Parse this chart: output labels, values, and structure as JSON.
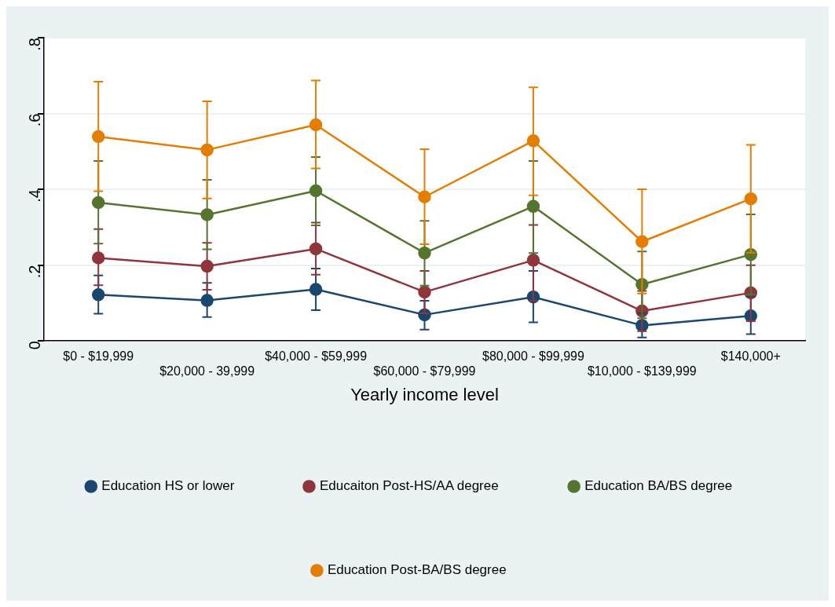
{
  "chart_data": {
    "type": "line",
    "xlabel": "Yearly income level",
    "categories": [
      "$0 - $19,999",
      "$20,000 - 39,999",
      "$40,000 - $59,999",
      "$60,000 - $79,999",
      "$80,000 - $99,999",
      "$10,000 - $139,999",
      "$140,000+"
    ],
    "ylim": [
      0,
      0.8
    ],
    "yticks": [
      {
        "value": 0,
        "label": "0"
      },
      {
        "value": 0.2,
        "label": ".2"
      },
      {
        "value": 0.4,
        "label": ".4"
      },
      {
        "value": 0.6,
        "label": ".6"
      },
      {
        "value": 0.8,
        "label": ".8"
      }
    ],
    "grid": "y",
    "legend": "bottom",
    "marker": "circle",
    "line_style": "solid",
    "series": [
      {
        "name": "Education HS or lower",
        "color": "#1a476f",
        "values": [
          0.122,
          0.107,
          0.136,
          0.069,
          0.116,
          0.041,
          0.066
        ],
        "errors": [
          [
            0.072,
            0.173
          ],
          [
            0.063,
            0.153
          ],
          [
            0.081,
            0.191
          ],
          [
            0.03,
            0.106
          ],
          [
            0.049,
            0.185
          ],
          [
            0.009,
            0.073
          ],
          [
            0.018,
            0.117
          ]
        ]
      },
      {
        "name": "Educaiton Post-HS/AA degree",
        "color": "#90353b",
        "values": [
          0.219,
          0.197,
          0.243,
          0.129,
          0.213,
          0.079,
          0.127
        ],
        "errors": [
          [
            0.147,
            0.295
          ],
          [
            0.135,
            0.259
          ],
          [
            0.175,
            0.312
          ],
          [
            0.073,
            0.185
          ],
          [
            0.106,
            0.306
          ],
          [
            0.026,
            0.132
          ],
          [
            0.052,
            0.2
          ]
        ]
      },
      {
        "name": "Education BA/BS degree",
        "color": "#55752f",
        "values": [
          0.365,
          0.333,
          0.396,
          0.232,
          0.355,
          0.149,
          0.228
        ],
        "errors": [
          [
            0.257,
            0.475
          ],
          [
            0.242,
            0.425
          ],
          [
            0.305,
            0.485
          ],
          [
            0.146,
            0.317
          ],
          [
            0.232,
            0.475
          ],
          [
            0.06,
            0.236
          ],
          [
            0.122,
            0.334
          ]
        ]
      },
      {
        "name": "Education Post-BA/BS degree",
        "color": "#e37e00",
        "values": [
          0.539,
          0.504,
          0.57,
          0.38,
          0.528,
          0.262,
          0.375
        ],
        "errors": [
          [
            0.395,
            0.684
          ],
          [
            0.376,
            0.632
          ],
          [
            0.455,
            0.687
          ],
          [
            0.255,
            0.506
          ],
          [
            0.384,
            0.669
          ],
          [
            0.125,
            0.4
          ],
          [
            0.233,
            0.517
          ]
        ]
      }
    ]
  }
}
